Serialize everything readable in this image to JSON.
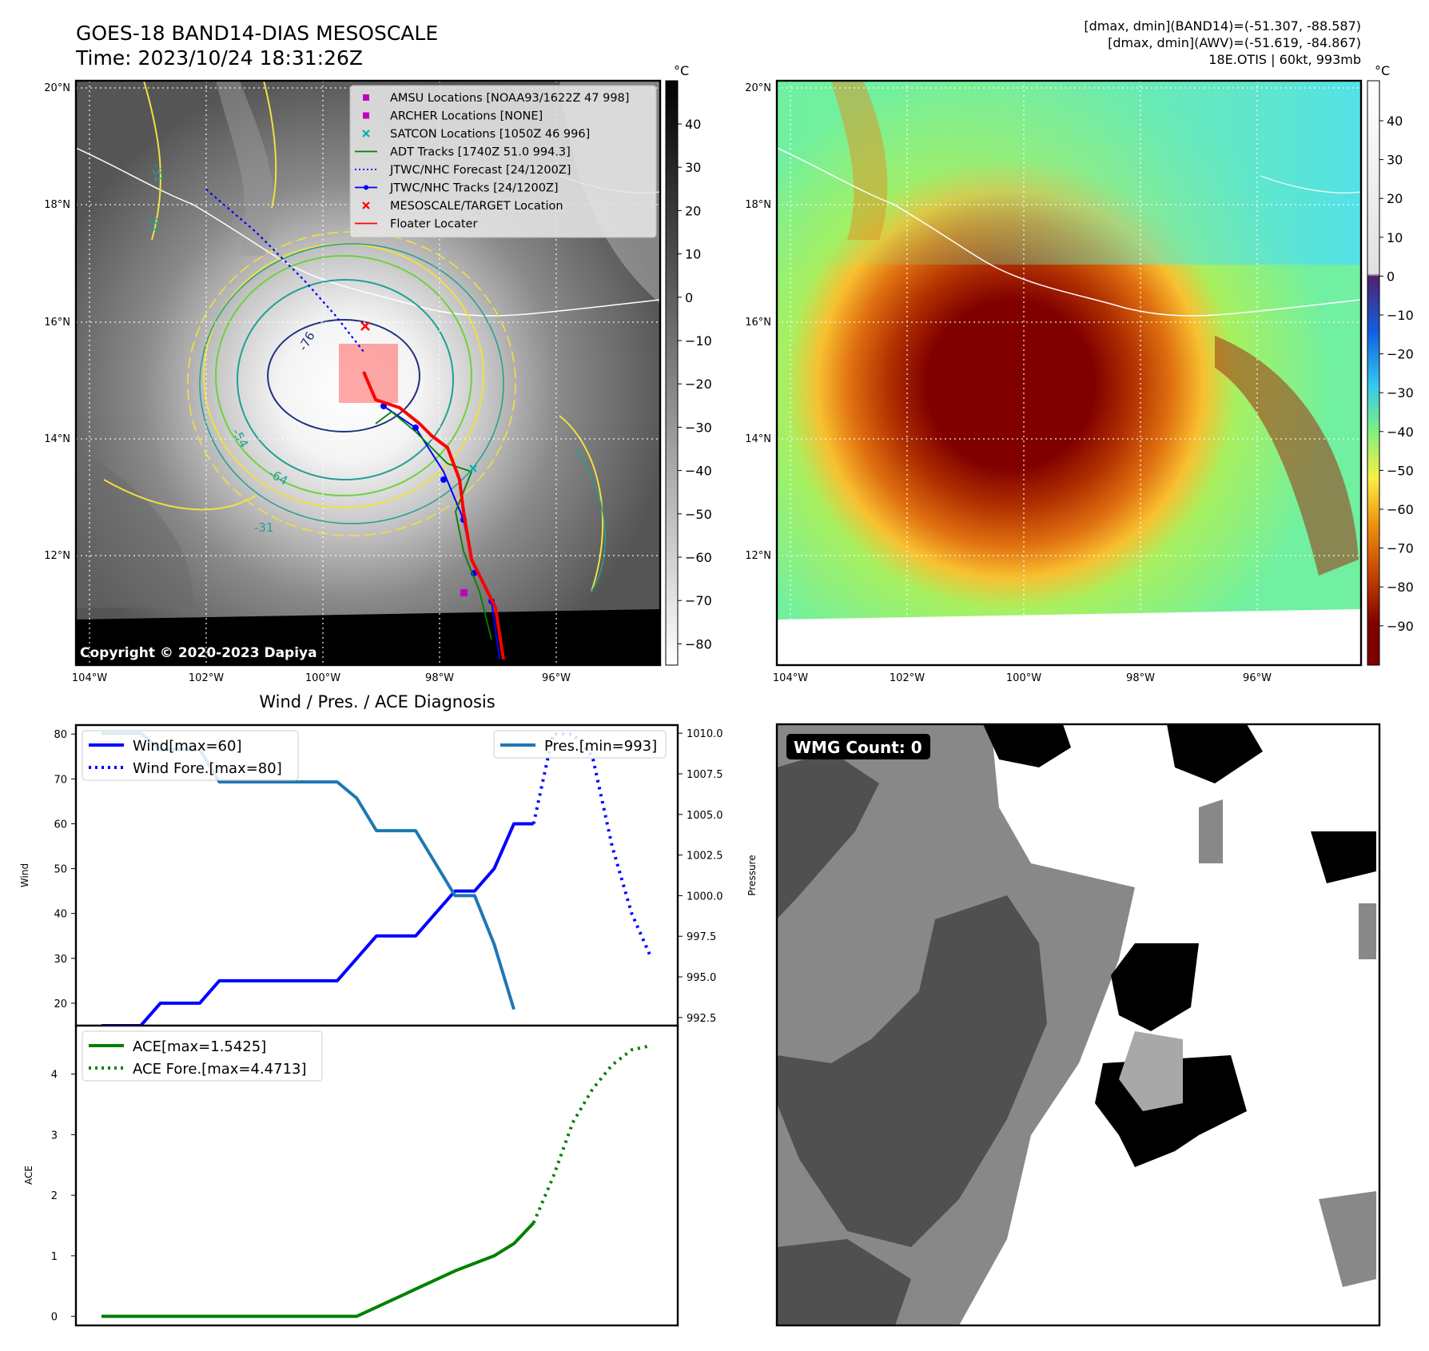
{
  "header": {
    "title": "GOES-18 BAND14-DIAS MESOSCALE",
    "time": "Time: 2023/10/24 18:31:26Z",
    "stats1": "[dmax, dmin](BAND14)=(-51.307, -88.587)",
    "stats2": "[dmax, dmin](AWV)=(-51.619, -84.867)",
    "storm": "18E.OTIS | 60kt, 993mb"
  },
  "map": {
    "lat_labels": [
      "20°N",
      "18°N",
      "16°N",
      "14°N",
      "12°N"
    ],
    "lon_labels": [
      "104°W",
      "102°W",
      "100°W",
      "98°W",
      "96°W"
    ],
    "copyright": "Copyright © 2020-2023 Dapiya",
    "contour_labels": [
      "-76",
      "-64",
      "-54",
      "-31",
      "-31",
      "-31"
    ],
    "legend": [
      {
        "label": "AMSU Locations [NOAA93/1622Z 47 998]",
        "color": "#c000c0",
        "marker": "square"
      },
      {
        "label": "ARCHER Locations [NONE]",
        "color": "#c000c0",
        "marker": "square"
      },
      {
        "label": "SATCON Locations [1050Z 46 996]",
        "color": "#00b0b0",
        "marker": "x"
      },
      {
        "label": "ADT Tracks [1740Z 51.0 994.3]",
        "color": "#008000",
        "marker": "line"
      },
      {
        "label": "JTWC/NHC Forecast [24/1200Z]",
        "color": "#0000ff",
        "marker": "dotted"
      },
      {
        "label": "JTWC/NHC Tracks [24/1200Z]",
        "color": "#0000ff",
        "marker": "line-dot"
      },
      {
        "label": "MESOSCALE/TARGET Location",
        "color": "#ff0000",
        "marker": "x"
      },
      {
        "label": "Floater Locater",
        "color": "#ff0000",
        "marker": "line"
      }
    ]
  },
  "colorbar_gray": {
    "unit": "°C",
    "ticks": [
      "40",
      "30",
      "20",
      "10",
      "0",
      "−10",
      "−20",
      "−30",
      "−40",
      "−50",
      "−60",
      "−70",
      "−80"
    ]
  },
  "colorbar_color": {
    "unit": "°C",
    "ticks": [
      "40",
      "30",
      "20",
      "10",
      "0",
      "−10",
      "−20",
      "−30",
      "−40",
      "−50",
      "−60",
      "−70",
      "−80",
      "−90"
    ]
  },
  "colors": {
    "wind": "#0000ff",
    "pressure": "#1f77b4",
    "ace": "#008000",
    "track_red": "#ff0000",
    "contour_yellow": "#f0e040",
    "contour_green": "#70d040",
    "contour_teal": "#20a090",
    "contour_navy": "#203080"
  },
  "wmg": {
    "label": "WMG Count: 0"
  },
  "chart_data": [
    {
      "type": "line",
      "title": "Wind / Pres. / ACE Diagnosis",
      "ylabel": "Wind",
      "ylabel_right": "Pressure",
      "ylim": [
        15,
        82
      ],
      "ylim_right": [
        992,
        1010.5
      ],
      "yticks": [
        "80",
        "70",
        "60",
        "50",
        "40",
        "30",
        "20"
      ],
      "yticks_right": [
        "1010.0",
        "1007.5",
        "1005.0",
        "1002.5",
        "1000.0",
        "997.5",
        "995.0",
        "992.5"
      ],
      "legend_left": [
        "Wind[max=60]",
        "Wind Fore.[max=80]"
      ],
      "legend_right": [
        "Pres.[min=993]"
      ],
      "series": [
        {
          "name": "Wind[max=60]",
          "axis": "left",
          "style": "solid",
          "x": [
            0,
            2,
            3,
            5,
            6,
            12,
            14,
            16,
            18,
            19,
            20,
            21,
            22
          ],
          "values": [
            15,
            15,
            20,
            20,
            25,
            25,
            35,
            35,
            45,
            45,
            50,
            60,
            60
          ]
        },
        {
          "name": "Wind Fore.[max=80]",
          "axis": "left",
          "style": "dotted",
          "x": [
            22,
            23,
            24,
            25,
            26,
            27,
            28
          ],
          "values": [
            60,
            80,
            80,
            75,
            55,
            40,
            30
          ]
        },
        {
          "name": "Pres.[min=993]",
          "axis": "right",
          "style": "solid",
          "x": [
            0,
            2,
            3,
            5,
            6,
            12,
            13,
            14,
            16,
            18,
            19,
            20,
            21
          ],
          "values": [
            1010,
            1010,
            1009,
            1009,
            1007,
            1007,
            1006,
            1004,
            1004,
            1000,
            1000,
            997,
            993
          ]
        }
      ]
    },
    {
      "type": "line",
      "ylabel": "ACE",
      "ylim": [
        -0.15,
        4.8
      ],
      "yticks": [
        "4",
        "3",
        "2",
        "1",
        "0"
      ],
      "legend": [
        "ACE[max=1.5425]",
        "ACE Fore.[max=4.4713]"
      ],
      "series": [
        {
          "name": "ACE[max=1.5425]",
          "style": "solid",
          "x": [
            0,
            13,
            15,
            16,
            18,
            20,
            21,
            22
          ],
          "values": [
            0,
            0,
            0.3,
            0.45,
            0.75,
            1.0,
            1.2,
            1.5425
          ]
        },
        {
          "name": "ACE Fore.[max=4.4713]",
          "style": "dotted",
          "x": [
            22,
            23,
            24,
            25,
            26,
            27,
            28
          ],
          "values": [
            1.5425,
            2.3,
            3.2,
            3.75,
            4.15,
            4.4,
            4.4713
          ]
        }
      ]
    }
  ]
}
